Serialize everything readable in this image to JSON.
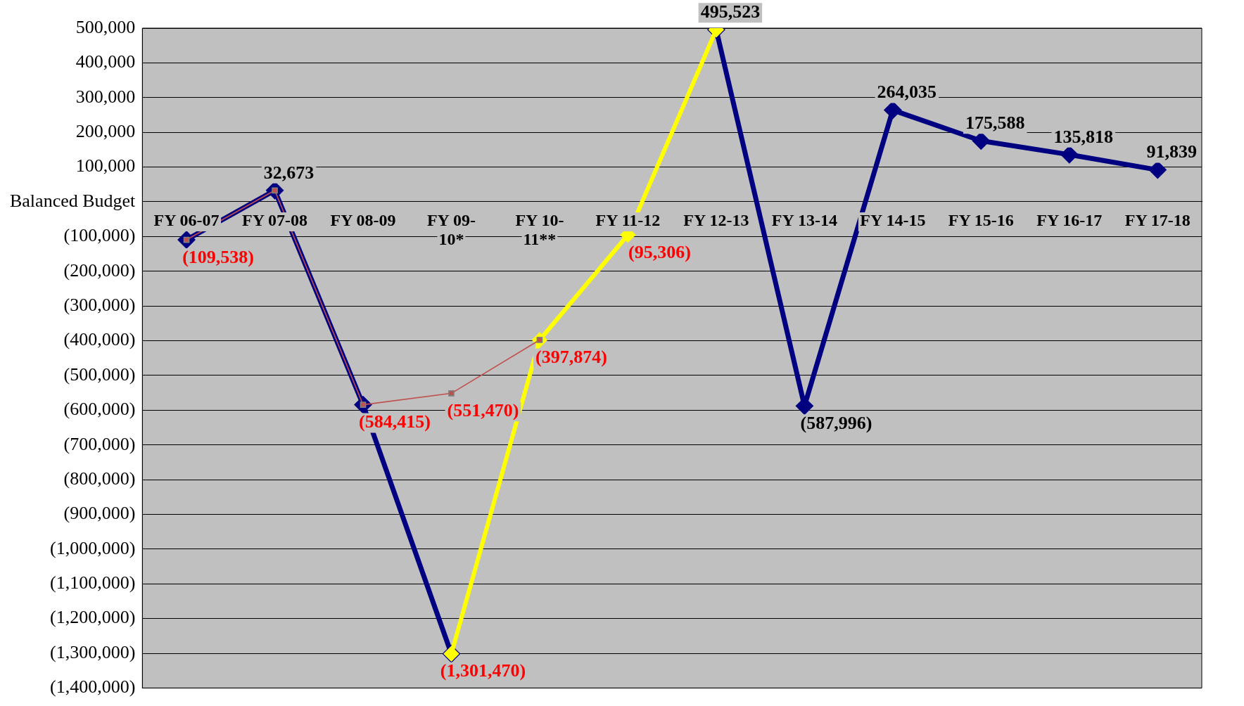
{
  "chart_data": {
    "type": "line",
    "categories": [
      "FY 06-07",
      "FY 07-08",
      "FY 08-09",
      "FY 09-10*",
      "FY 10-11**",
      "FY 11-12",
      "FY 12-13",
      "FY 13-14",
      "FY 14-15",
      "FY 15-16",
      "FY 16-17",
      "FY 17-18"
    ],
    "series": [
      {
        "color": "#000080",
        "marker": "diamond",
        "values": [
          -109538,
          32673,
          -584415,
          -1301470,
          null,
          null,
          495523,
          -587996,
          264035,
          175588,
          135818,
          91839
        ],
        "value_labels": [
          null,
          "32,673",
          null,
          null,
          null,
          null,
          "495,523",
          "(587,996)",
          "264,035",
          "175,588",
          "135,818",
          "91,839"
        ]
      },
      {
        "color": "#ffff00",
        "marker": "diamond",
        "values": [
          null,
          null,
          null,
          -1301470,
          -397874,
          -95306,
          495523,
          null,
          null,
          null,
          null,
          null
        ],
        "value_labels": [
          null,
          null,
          null,
          "(1,301,470)",
          null,
          "(95,306)",
          null,
          null,
          null,
          null,
          null,
          null
        ]
      },
      {
        "color": "#c0504d",
        "marker": "square",
        "values": [
          -109538,
          32673,
          -584415,
          -551470,
          -397874,
          null,
          null,
          null,
          null,
          null,
          null,
          null
        ],
        "value_labels": [
          "(109,538)",
          null,
          "(584,415)",
          "(551,470)",
          "(397,874)",
          null,
          null,
          null,
          null,
          null,
          null,
          null
        ]
      }
    ],
    "ylim": [
      -1400000,
      500000
    ],
    "yticks": [
      {
        "value": -1400000,
        "label": "(1,400,000)"
      },
      {
        "value": -1300000,
        "label": "(1,300,000)"
      },
      {
        "value": -1200000,
        "label": "(1,200,000)"
      },
      {
        "value": -1100000,
        "label": "(1,100,000)"
      },
      {
        "value": -1000000,
        "label": "(1,000,000)"
      },
      {
        "value": -900000,
        "label": "(900,000)"
      },
      {
        "value": -800000,
        "label": "(800,000)"
      },
      {
        "value": -700000,
        "label": "(700,000)"
      },
      {
        "value": -600000,
        "label": "(600,000)"
      },
      {
        "value": -500000,
        "label": "(500,000)"
      },
      {
        "value": -400000,
        "label": "(400,000)"
      },
      {
        "value": -300000,
        "label": "(300,000)"
      },
      {
        "value": -200000,
        "label": "(200,000)"
      },
      {
        "value": -100000,
        "label": "(100,000)"
      },
      {
        "value": 0,
        "label": "Balanced Budget"
      },
      {
        "value": 100000,
        "label": "100,000"
      },
      {
        "value": 200000,
        "label": "200,000"
      },
      {
        "value": 300000,
        "label": "300,000"
      },
      {
        "value": 400000,
        "label": "400,000"
      },
      {
        "value": 500000,
        "label": "500,000"
      }
    ],
    "grid": "y",
    "legend": false
  }
}
